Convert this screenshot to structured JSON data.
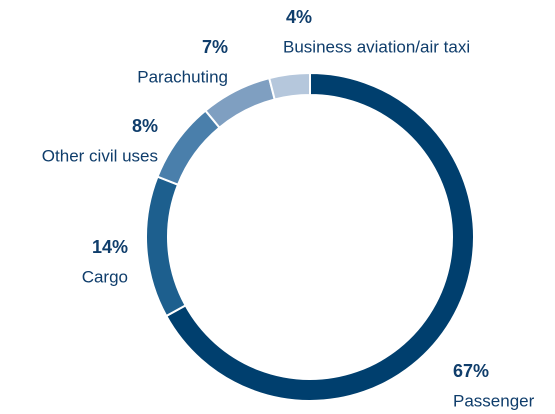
{
  "chart_data": {
    "type": "pie",
    "donut": true,
    "categories": [
      "Passenger",
      "Cargo",
      "Other civil uses",
      "Parachuting",
      "Business aviation/air taxi"
    ],
    "values": [
      67,
      14,
      8,
      7,
      4
    ],
    "value_labels": [
      "67%",
      "14%",
      "8%",
      "7%",
      "4%"
    ],
    "colors": [
      "#003f6e",
      "#1d5f8e",
      "#4a7fab",
      "#7f9fc1",
      "#b5c7dc"
    ]
  }
}
